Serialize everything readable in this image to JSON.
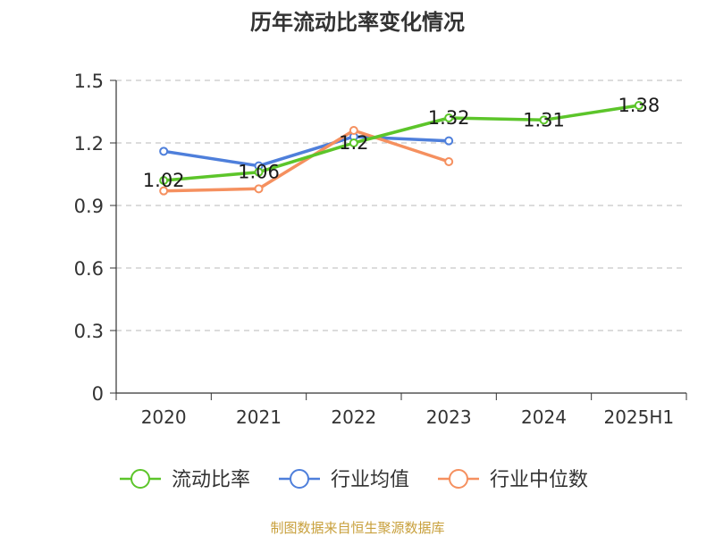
{
  "chart_data": {
    "type": "line",
    "title": "历年流动比率变化情况",
    "categories": [
      "2020",
      "2021",
      "2022",
      "2023",
      "2024",
      "2025H1"
    ],
    "ylim": [
      0,
      1.5
    ],
    "yticks": [
      "0",
      "0.3",
      "0.6",
      "0.9",
      "1.2",
      "1.5"
    ],
    "grid": true,
    "legend_position": "bottom",
    "series": [
      {
        "name": "流动比率",
        "color": "#5cc52a",
        "values": [
          1.02,
          1.06,
          1.2,
          1.32,
          1.31,
          1.38
        ],
        "labels": [
          "1.02",
          "1.06",
          "1.2",
          "1.32",
          "1.31",
          "1.38"
        ]
      },
      {
        "name": "行业均值",
        "color": "#4e7fdb",
        "values": [
          1.16,
          1.09,
          1.23,
          1.21,
          null,
          null
        ]
      },
      {
        "name": "行业中位数",
        "color": "#f5905f",
        "values": [
          0.97,
          0.98,
          1.26,
          1.11,
          null,
          null
        ]
      }
    ]
  },
  "source_note": "制图数据来自恒生聚源数据库"
}
